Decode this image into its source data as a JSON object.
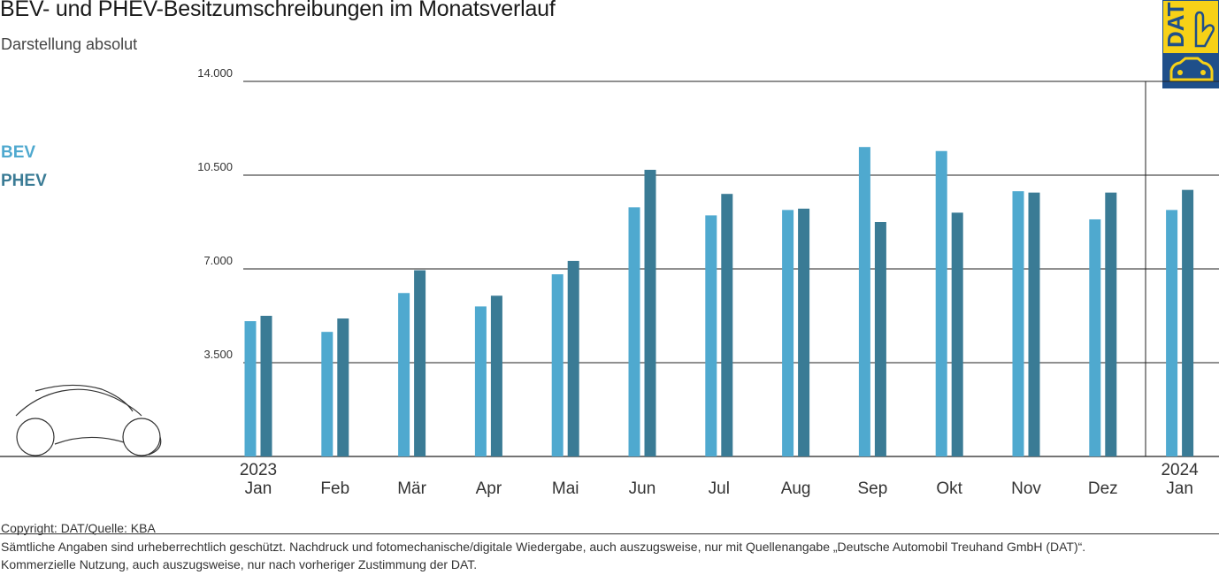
{
  "header": {
    "title": "BEV- und PHEV-Besitzumschreibungen im Monatsverlauf",
    "subtitle": "Darstellung absolut"
  },
  "colors": {
    "bev": "#4fa9cf",
    "phev": "#3a7b95",
    "logo_yellow": "#f7d117",
    "logo_blue": "#1f4f8a"
  },
  "logo": {
    "text": "DAT"
  },
  "chart_data": {
    "type": "bar",
    "title": "BEV- und PHEV-Besitzumschreibungen im Monatsverlauf",
    "subtitle": "Darstellung absolut",
    "categories": [
      "Jan",
      "Feb",
      "Mär",
      "Apr",
      "Mai",
      "Jun",
      "Jul",
      "Aug",
      "Sep",
      "Okt",
      "Nov",
      "Dez",
      "Jan"
    ],
    "year_labels": [
      "2023",
      "",
      "",
      "",
      "",
      "",
      "",
      "",
      "",
      "",
      "",
      "",
      "2024"
    ],
    "series": [
      {
        "name": "BEV",
        "values": [
          5050,
          4650,
          6100,
          5600,
          6800,
          9300,
          9000,
          9200,
          11550,
          11400,
          9900,
          8850,
          9200
        ]
      },
      {
        "name": "PHEV",
        "values": [
          5250,
          5150,
          6950,
          6000,
          7300,
          10700,
          9800,
          9250,
          8750,
          9100,
          9850,
          9850,
          9950
        ]
      }
    ],
    "ylim": [
      0,
      14000
    ],
    "yticks": [
      3500,
      7000,
      10500,
      14000
    ],
    "ytick_labels": [
      "3.500",
      "7.000",
      "10.500",
      "14.000"
    ],
    "grid": true,
    "legend_position": "left"
  },
  "footer": {
    "copyright": "Copyright: DAT/Quelle: KBA",
    "line1": "Sämtliche Angaben sind urheberrechtlich geschützt. Nachdruck und fotomechanische/digitale Wiedergabe, auch auszugsweise, nur mit Quellenangabe „Deutsche Automobil Treuhand GmbH (DAT)“.",
    "line2": "Kommerzielle Nutzung, auch auszugsweise, nur nach vorheriger Zustimmung der DAT."
  }
}
